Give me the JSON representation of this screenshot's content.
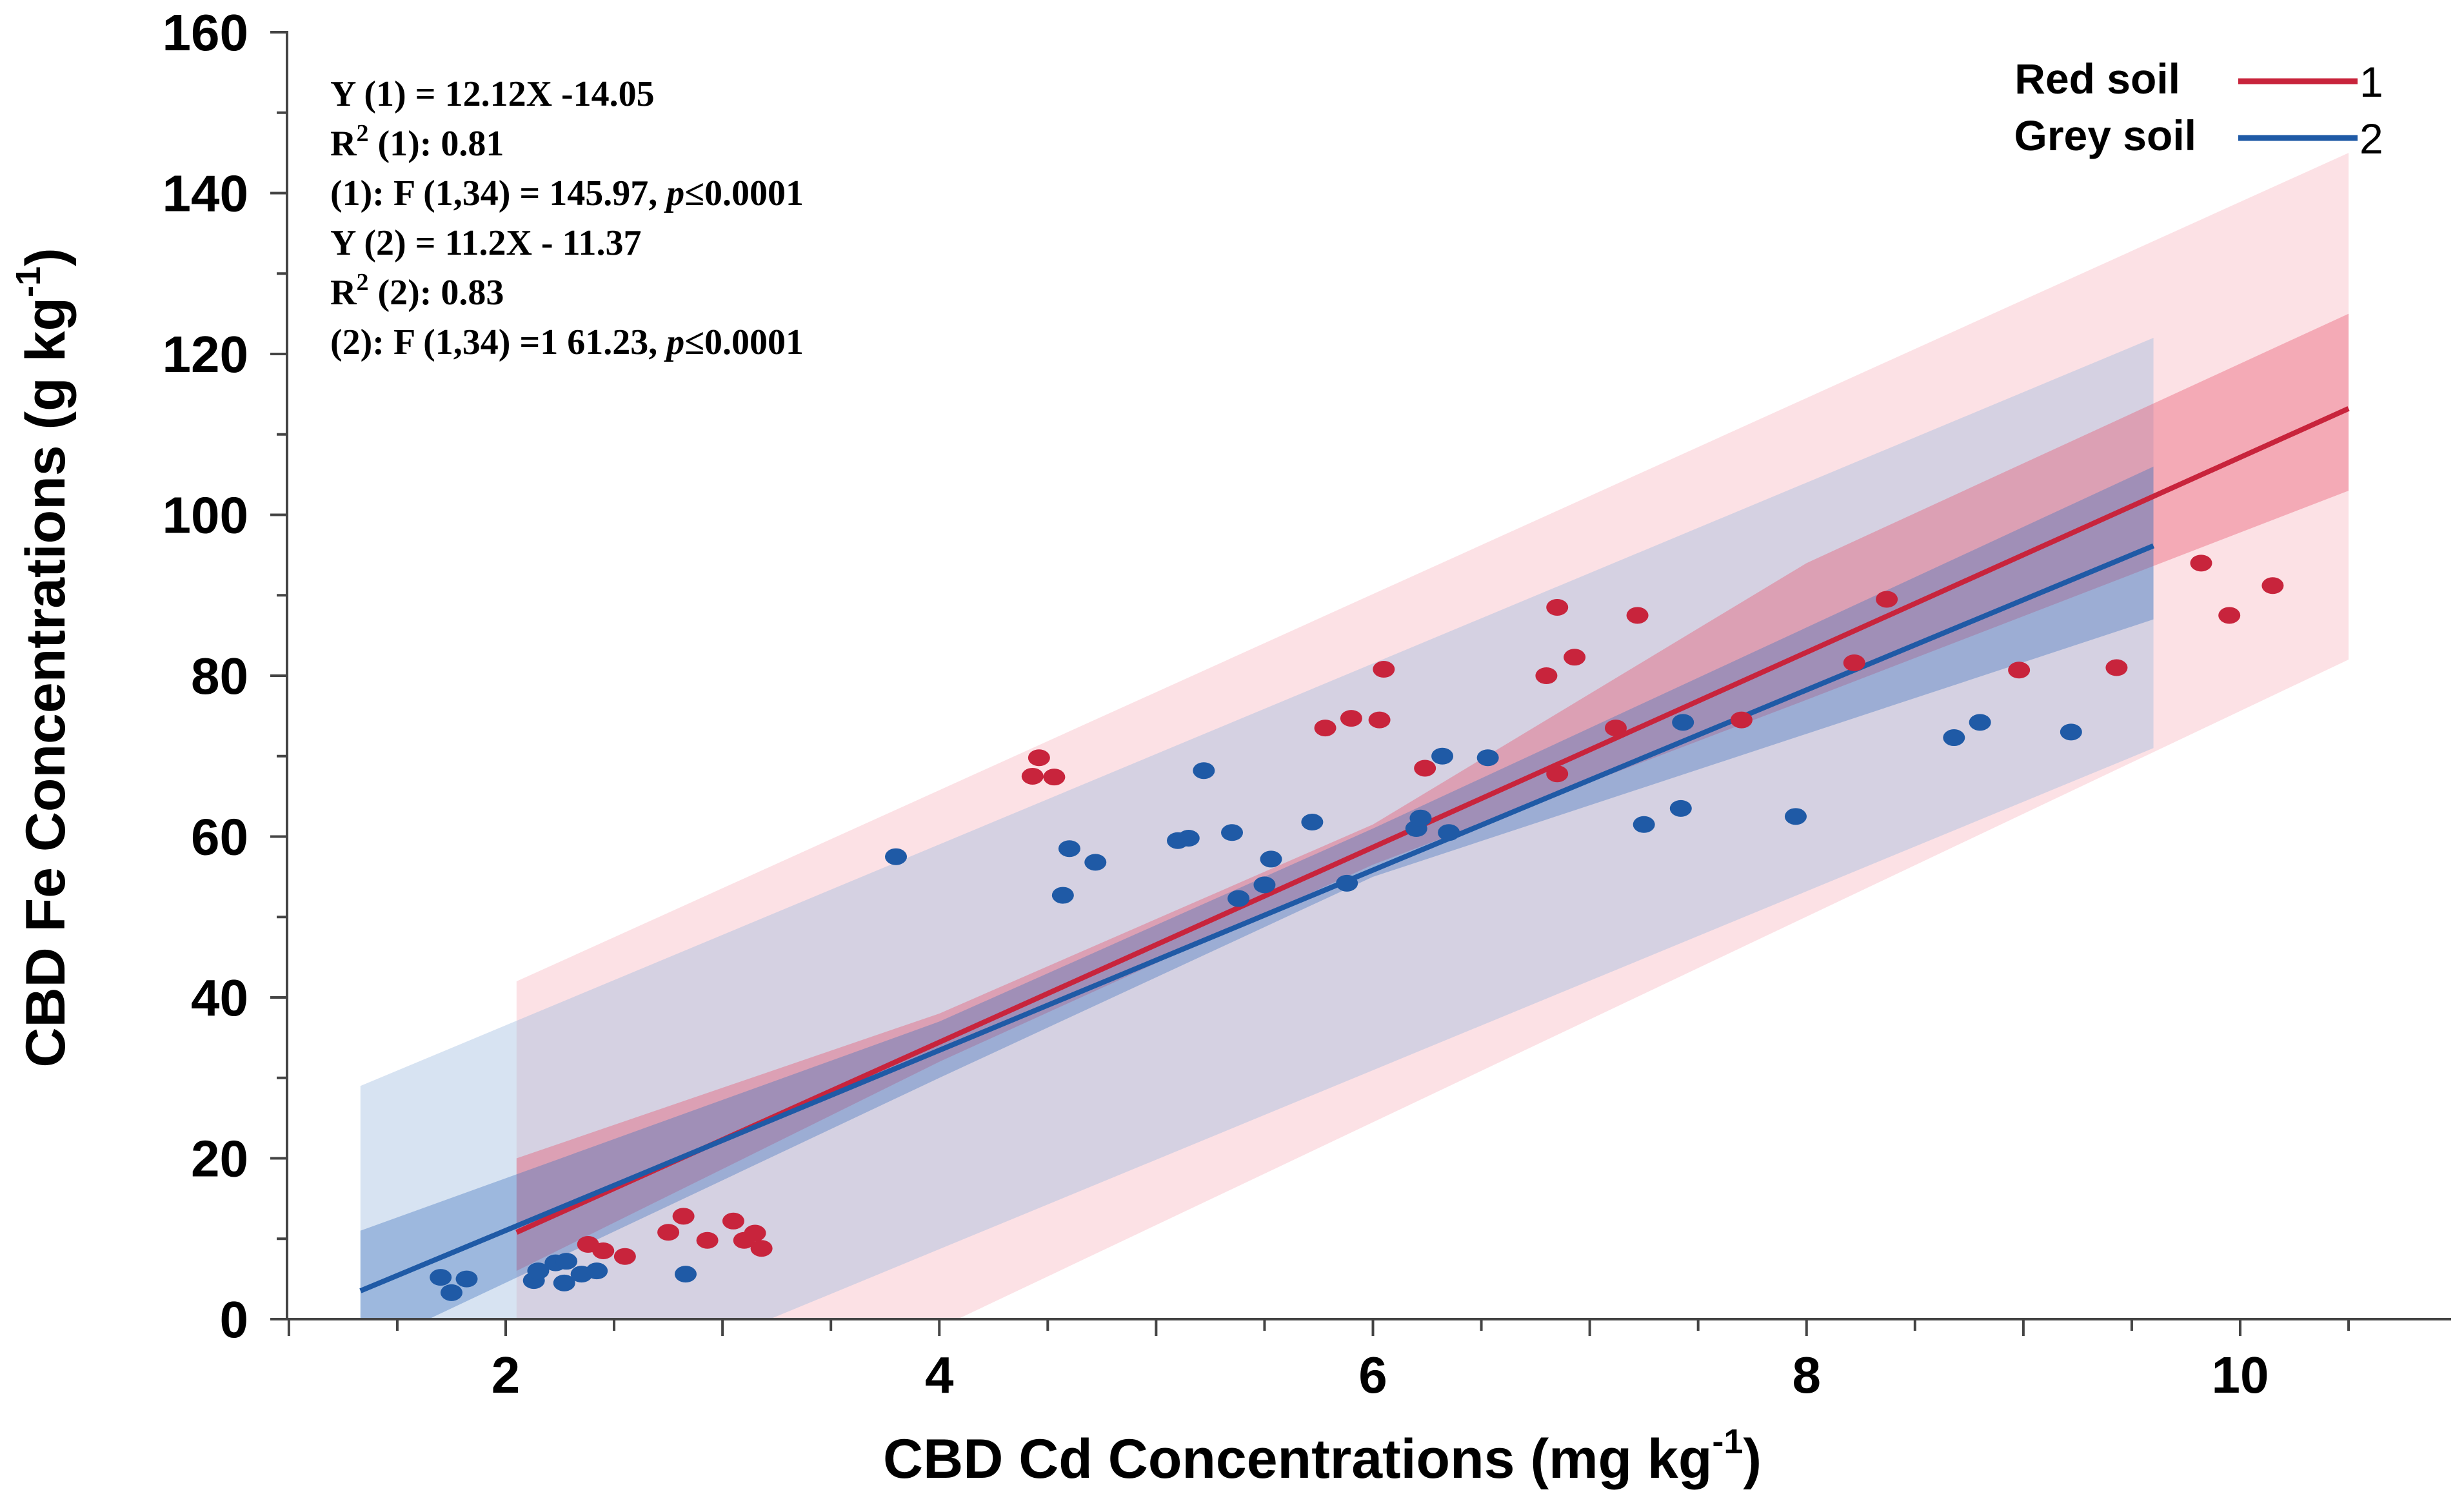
{
  "chart_data": {
    "type": "scatter",
    "title": "",
    "xlabel": "CBD Cd Concentrations",
    "xlabel_unit": "(mg kg",
    "xlabel_unit_sup": "-1",
    "xlabel_unit_close": ")",
    "ylabel": "CBD Fe Concentrations",
    "ylabel_unit": "(g kg",
    "ylabel_unit_sup": "-1",
    "ylabel_unit_close": ")",
    "xlim": [
      1.0,
      11.0
    ],
    "ylim": [
      0,
      160
    ],
    "xticks": [
      2,
      4,
      6,
      8,
      10
    ],
    "yticks": [
      0,
      20,
      40,
      60,
      80,
      100,
      120,
      140,
      160
    ],
    "xtick_labels": [
      "2",
      "4",
      "6",
      "8",
      "10"
    ],
    "ytick_labels": [
      "0",
      "20",
      "40",
      "60",
      "80",
      "100",
      "120",
      "140",
      "160"
    ],
    "legend_position": "top-right",
    "series": [
      {
        "name": "Red soil",
        "label": "1",
        "color": "#c8243c",
        "line": {
          "slope": 12.12,
          "intercept": -14.05,
          "x_range": [
            2.05,
            10.5
          ]
        },
        "confidence_band": {
          "x": [
            2.05,
            4,
            6,
            8,
            10.5
          ],
          "lower": [
            6,
            32,
            56.5,
            77,
            103
          ],
          "upper": [
            20,
            38,
            61.5,
            94,
            125
          ]
        },
        "prediction_band": {
          "x": [
            2.05,
            10.5
          ],
          "lower": [
            -26,
            82
          ],
          "upper": [
            42,
            145
          ]
        },
        "points": [
          {
            "x": 2.38,
            "y": 9.3
          },
          {
            "x": 2.45,
            "y": 8.5
          },
          {
            "x": 2.55,
            "y": 7.8
          },
          {
            "x": 2.75,
            "y": 10.8
          },
          {
            "x": 2.82,
            "y": 12.8
          },
          {
            "x": 2.93,
            "y": 9.8
          },
          {
            "x": 3.05,
            "y": 12.2
          },
          {
            "x": 3.1,
            "y": 9.8
          },
          {
            "x": 3.15,
            "y": 10.7
          },
          {
            "x": 3.18,
            "y": 8.8
          },
          {
            "x": 4.43,
            "y": 67.5
          },
          {
            "x": 4.46,
            "y": 69.8
          },
          {
            "x": 4.53,
            "y": 67.4
          },
          {
            "x": 5.78,
            "y": 73.5
          },
          {
            "x": 5.9,
            "y": 74.7
          },
          {
            "x": 6.03,
            "y": 74.5
          },
          {
            "x": 6.05,
            "y": 80.8
          },
          {
            "x": 6.24,
            "y": 68.5
          },
          {
            "x": 6.8,
            "y": 80.0
          },
          {
            "x": 6.85,
            "y": 88.5
          },
          {
            "x": 6.85,
            "y": 67.8
          },
          {
            "x": 6.93,
            "y": 82.3
          },
          {
            "x": 7.12,
            "y": 73.5
          },
          {
            "x": 7.22,
            "y": 87.5
          },
          {
            "x": 7.7,
            "y": 74.5
          },
          {
            "x": 8.22,
            "y": 81.6
          },
          {
            "x": 8.37,
            "y": 89.5
          },
          {
            "x": 8.98,
            "y": 80.7
          },
          {
            "x": 9.43,
            "y": 81.0
          },
          {
            "x": 9.82,
            "y": 94.0
          },
          {
            "x": 9.95,
            "y": 87.5
          },
          {
            "x": 10.15,
            "y": 91.2
          }
        ]
      },
      {
        "name": "Grey soil",
        "label": "2",
        "color": "#1f5aa6",
        "line": {
          "slope": 11.2,
          "intercept": -11.37,
          "x_range": [
            1.33,
            9.6
          ]
        },
        "confidence_band": {
          "x": [
            1.33,
            4,
            6,
            9.6
          ],
          "lower": [
            -4,
            30,
            55,
            87
          ],
          "upper": [
            11,
            37,
            61,
            106
          ]
        },
        "prediction_band": {
          "x": [
            1.33,
            9.6
          ],
          "lower": [
            -21,
            71
          ],
          "upper": [
            29,
            122
          ]
        },
        "points": [
          {
            "x": 1.7,
            "y": 5.2
          },
          {
            "x": 1.75,
            "y": 3.3
          },
          {
            "x": 1.82,
            "y": 5.0
          },
          {
            "x": 2.13,
            "y": 4.8
          },
          {
            "x": 2.15,
            "y": 6.0
          },
          {
            "x": 2.23,
            "y": 7.0
          },
          {
            "x": 2.28,
            "y": 7.2
          },
          {
            "x": 2.27,
            "y": 4.5
          },
          {
            "x": 2.35,
            "y": 5.6
          },
          {
            "x": 2.42,
            "y": 6.0
          },
          {
            "x": 2.83,
            "y": 5.6
          },
          {
            "x": 3.8,
            "y": 57.5
          },
          {
            "x": 4.57,
            "y": 52.7
          },
          {
            "x": 4.6,
            "y": 58.5
          },
          {
            "x": 4.72,
            "y": 56.8
          },
          {
            "x": 5.1,
            "y": 59.5
          },
          {
            "x": 5.15,
            "y": 59.8
          },
          {
            "x": 5.22,
            "y": 68.2
          },
          {
            "x": 5.35,
            "y": 60.5
          },
          {
            "x": 5.38,
            "y": 52.3
          },
          {
            "x": 5.5,
            "y": 54.0
          },
          {
            "x": 5.53,
            "y": 57.2
          },
          {
            "x": 5.72,
            "y": 61.8
          },
          {
            "x": 5.88,
            "y": 54.2
          },
          {
            "x": 6.2,
            "y": 61.0
          },
          {
            "x": 6.22,
            "y": 62.3
          },
          {
            "x": 6.32,
            "y": 70.0
          },
          {
            "x": 6.35,
            "y": 60.5
          },
          {
            "x": 6.53,
            "y": 69.8
          },
          {
            "x": 7.25,
            "y": 61.5
          },
          {
            "x": 7.42,
            "y": 63.5
          },
          {
            "x": 7.43,
            "y": 74.2
          },
          {
            "x": 7.95,
            "y": 62.5
          },
          {
            "x": 8.68,
            "y": 72.3
          },
          {
            "x": 8.8,
            "y": 74.2
          },
          {
            "x": 9.22,
            "y": 73.0
          }
        ]
      }
    ],
    "annotations": [
      {
        "prefix": "Y (1) = 12.12X -14.05",
        "sup": "",
        "mid": "",
        "italic": "",
        "suffix": ""
      },
      {
        "prefix": "R",
        "sup": "2",
        "mid": " (1): 0.81",
        "italic": "",
        "suffix": ""
      },
      {
        "prefix": "",
        "sup": "",
        "mid": "(1): F (1,34) = 145.97, ",
        "italic": "p",
        "suffix": "≤0.0001"
      },
      {
        "prefix": "Y (2) = 11.2X - 11.37",
        "sup": "",
        "mid": "",
        "italic": "",
        "suffix": ""
      },
      {
        "prefix": "R",
        "sup": "2",
        "mid": " (2): 0.83",
        "italic": "",
        "suffix": ""
      },
      {
        "prefix": "",
        "sup": "",
        "mid": "(2): F (1,34) =1 61.23, ",
        "italic": "p",
        "suffix": "≤0.0001"
      }
    ]
  }
}
